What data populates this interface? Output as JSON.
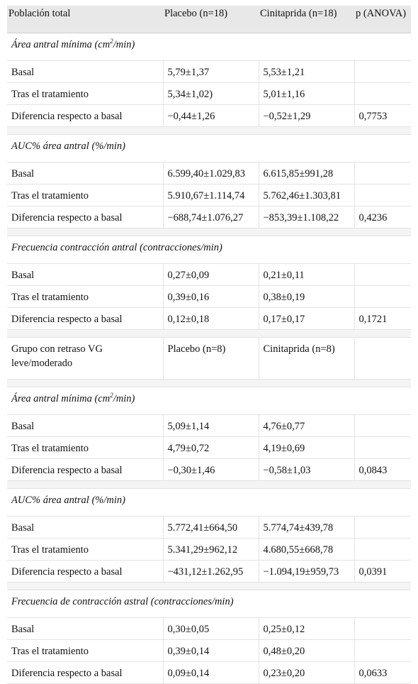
{
  "header": {
    "col1": "Población total",
    "col2": "Placebo (n=18)",
    "col3": "Cinitaprida (n=18)",
    "col4": "p (ANOVA)"
  },
  "labels": {
    "basal": "Basal",
    "tras": "Tras el tratamiento",
    "diferencia": "Diferencia respecto a basal"
  },
  "sections": {
    "s1": {
      "title_pre": "Área antral mínima (cm",
      "title_sup": "2",
      "title_post": "/min)",
      "basal": [
        "5,79±1,37",
        "5,53±1,21",
        ""
      ],
      "tras": [
        "5,34±1,02)",
        "5,01±1,16",
        ""
      ],
      "diferencia": [
        "−0,44±1,26",
        "−0,52±1,29",
        "0,7753"
      ]
    },
    "s2": {
      "title": "AUC% área antral (%/min)",
      "basal": [
        "6.599,40±1.029,83",
        "6.615,85±991,28",
        ""
      ],
      "tras": [
        "5.910,67±1.114,74",
        "5.762,46±1.303,81",
        ""
      ],
      "diferencia": [
        "−688,74±1.076,27",
        "−853,39±1.108,22",
        "0,4236"
      ]
    },
    "s3": {
      "title": "Frecuencia contracción antral (contracciones/min)",
      "basal": [
        "0,27±0,09",
        "0,21±0,11",
        ""
      ],
      "tras": [
        "0,39±0,16",
        "0,38±0,19",
        ""
      ],
      "diferencia": [
        "0,12±0,18",
        "0,17±0,17",
        "0,1721"
      ]
    },
    "group": {
      "col1": "Grupo con retraso VG leve/moderado",
      "col2": "Placebo (n=8)",
      "col3": "Cinitaprida (n=8)"
    },
    "s4": {
      "title_pre": "Área antral mínima (cm",
      "title_sup": "2",
      "title_post": "/min)",
      "basal": [
        "5,09±1,14",
        "4,76±0,77",
        ""
      ],
      "tras": [
        "4,79±0,72",
        "4,19±0,69",
        ""
      ],
      "diferencia": [
        "−0,30±1,46",
        "−0,58±1,03",
        "0,0843"
      ]
    },
    "s5": {
      "title": "AUC% área antral (%/min)",
      "basal": [
        "5.772,41±664,50",
        "5.774,74±439,78",
        ""
      ],
      "tras": [
        "5.341,29±962,12",
        "4.680,55±668,78",
        ""
      ],
      "diferencia": [
        "−431,12±1.262,95",
        "−1.094,19±959,73",
        "0,0391"
      ]
    },
    "s6": {
      "title": "Frecuencia de contracción astral (contracciones/min)",
      "basal": [
        "0,30±0,05",
        "0,25±0,12",
        ""
      ],
      "tras": [
        "0,39±0,14",
        "0,48±0,20",
        ""
      ],
      "diferencia": [
        "0,09±0,14",
        "0,23±0,20",
        "0,0633"
      ]
    }
  }
}
